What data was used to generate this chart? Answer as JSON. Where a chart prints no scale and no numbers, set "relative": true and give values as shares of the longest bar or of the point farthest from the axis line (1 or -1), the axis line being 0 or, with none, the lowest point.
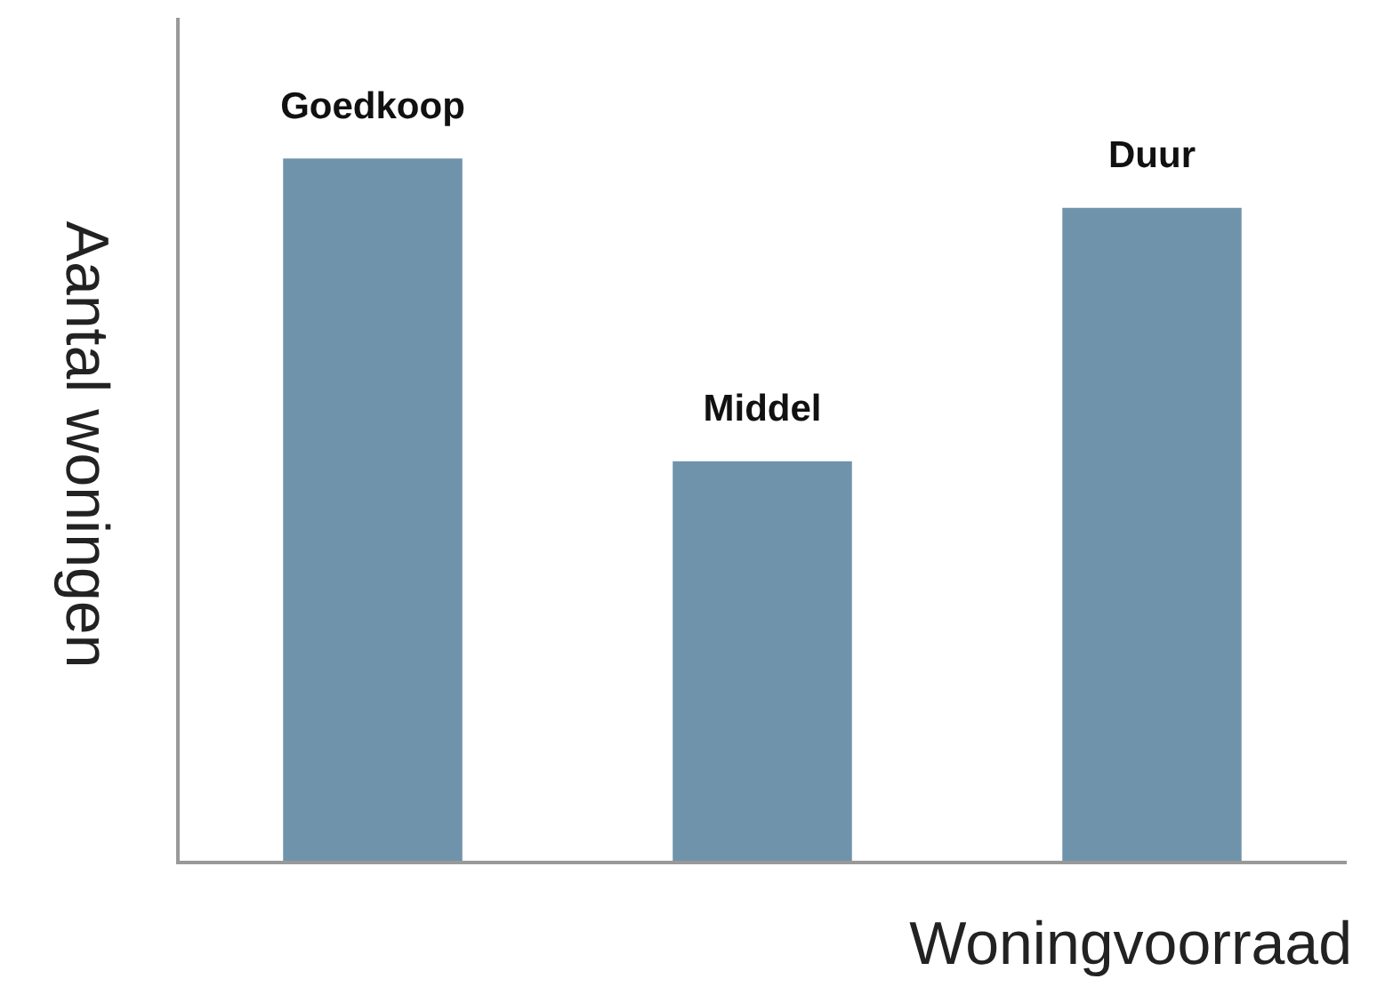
{
  "chart_data": {
    "type": "bar",
    "xlabel": "Woningvoorraad",
    "ylabel": "Aantal woningen",
    "relative": true,
    "categories": [
      "Goedkoop",
      "Middel",
      "Duur"
    ],
    "values": [
      1,
      0.57,
      0.93
    ],
    "color": "#6f93ab",
    "legend": false
  }
}
